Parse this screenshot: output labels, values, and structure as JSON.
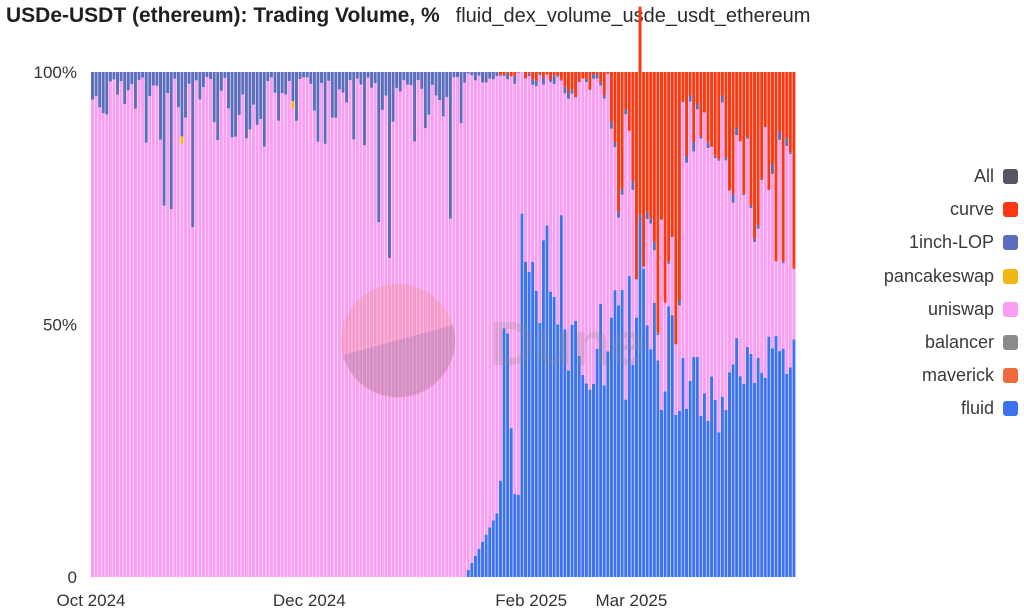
{
  "chart_title": "USDe-USDT (ethereum): Trading Volume, %",
  "chart_subtitle": "fluid_dex_volume_usde_usdt_ethereum",
  "watermark_text": "Dune",
  "chart_data": {
    "type": "bar",
    "stacked": true,
    "normalized_percent": true,
    "title": "USDe-USDT (ethereum): Trading Volume, %",
    "xlabel": "",
    "ylabel": "",
    "ylim": [
      0,
      100
    ],
    "y_tick_labels": [
      "0",
      "50%",
      "100%"
    ],
    "x_tick_labels": [
      "Oct 2024",
      "Dec 2024",
      "Feb 2025",
      "Mar 2025"
    ],
    "x_range": [
      "2024-10-01",
      "2025-04-16"
    ],
    "x_tick_dates": [
      "2024-10-01",
      "2024-12-01",
      "2025-02-01",
      "2025-03-01"
    ],
    "legend_position": "right",
    "grid": false,
    "stack_order_bottom_to_top": [
      "fluid",
      "maverick",
      "balancer",
      "uniswap",
      "pancakeswap",
      "1inch-LOP",
      "curve",
      "All"
    ],
    "legend": [
      {
        "name": "All",
        "color": "#5a5566"
      },
      {
        "name": "curve",
        "color": "#fb3812"
      },
      {
        "name": "1inch-LOP",
        "color": "#5d6dbd"
      },
      {
        "name": "pancakeswap",
        "color": "#f0b811"
      },
      {
        "name": "uniswap",
        "color": "#fb9df2"
      },
      {
        "name": "balancer",
        "color": "#8a8a8a"
      },
      {
        "name": "maverick",
        "color": "#ef6a3c"
      },
      {
        "name": "fluid",
        "color": "#3d73ef"
      }
    ],
    "segments": [
      {
        "from": "2024-10-01",
        "to": "2025-01-13",
        "fluid": [
          0,
          0
        ],
        "curve": [
          0,
          0
        ],
        "oneinch": [
          1,
          15
        ]
      },
      {
        "from": "2025-01-13",
        "to": "2025-01-23",
        "fluid": [
          0,
          14
        ],
        "curve": [
          0,
          0
        ],
        "oneinch": [
          0,
          3
        ]
      },
      {
        "from": "2025-01-23",
        "to": "2025-01-29",
        "fluid": [
          16,
          50
        ],
        "curve": [
          0,
          1
        ],
        "oneinch": [
          0,
          2
        ]
      },
      {
        "from": "2025-01-29",
        "to": "2025-02-10",
        "fluid": [
          50,
          72
        ],
        "curve": [
          0,
          2
        ],
        "oneinch": [
          0,
          2
        ]
      },
      {
        "from": "2025-02-10",
        "to": "2025-02-23",
        "fluid": [
          35,
          55
        ],
        "curve": [
          0,
          5
        ],
        "oneinch": [
          0,
          2
        ]
      },
      {
        "from": "2025-02-23",
        "to": "2025-03-02",
        "fluid": [
          35,
          60
        ],
        "curve": [
          5,
          30
        ],
        "oneinch": [
          0,
          2
        ]
      },
      {
        "from": "2025-03-02",
        "to": "2025-03-08",
        "fluid": [
          45,
          75
        ],
        "curve": [
          25,
          45
        ],
        "oneinch": [
          0,
          2
        ]
      },
      {
        "from": "2025-03-08",
        "to": "2025-03-15",
        "fluid": [
          30,
          55
        ],
        "curve": [
          25,
          60
        ],
        "oneinch": [
          0,
          2
        ]
      },
      {
        "from": "2025-03-15",
        "to": "2025-03-28",
        "fluid": [
          25,
          45
        ],
        "curve": [
          3,
          20
        ],
        "oneinch": [
          0,
          2
        ]
      },
      {
        "from": "2025-03-28",
        "to": "2025-04-16",
        "fluid": [
          38,
          48
        ],
        "curve": [
          10,
          40
        ],
        "oneinch": [
          0,
          2
        ]
      }
    ]
  }
}
